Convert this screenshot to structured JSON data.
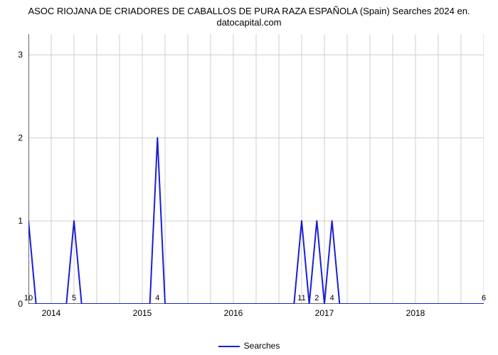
{
  "chart": {
    "type": "line",
    "title_line1": "ASOC RIOJANA DE CRIADORES DE CABALLOS DE PURA RAZA ESPAÑOLA (Spain) Searches 2024 en.",
    "title_line2": "datocapital.com",
    "title_fontsize": 13,
    "background_color": "#ffffff",
    "grid_color": "#cfcfcf",
    "axis_color": "#000000",
    "line_color": "#1a1fd6",
    "line_width": 2,
    "x_axis": {
      "min": 0,
      "max": 60,
      "ticks": [
        {
          "pos": 3,
          "label": "2014"
        },
        {
          "pos": 15,
          "label": "2015"
        },
        {
          "pos": 27,
          "label": "2016"
        },
        {
          "pos": 39,
          "label": "2017"
        },
        {
          "pos": 51,
          "label": "2018"
        }
      ],
      "minor_step": 3,
      "label_fontsize": 12
    },
    "y_axis": {
      "min": 0,
      "max": 3.25,
      "ticks": [
        0,
        1,
        2,
        3
      ],
      "label_fontsize": 12
    },
    "series": {
      "name": "Searches",
      "y_values": [
        1,
        0,
        0,
        0,
        0,
        0,
        1,
        0,
        0,
        0,
        0,
        0,
        0,
        0,
        0,
        0,
        0,
        2,
        0,
        0,
        0,
        0,
        0,
        0,
        0,
        0,
        0,
        0,
        0,
        0,
        0,
        0,
        0,
        0,
        0,
        0,
        1,
        0,
        1,
        0,
        1,
        0,
        0,
        0,
        0,
        0,
        0,
        0,
        0,
        0,
        0,
        0,
        0,
        0,
        0,
        0,
        0,
        0,
        0,
        0,
        0
      ],
      "point_labels": [
        {
          "x": 0,
          "text": "10"
        },
        {
          "x": 6,
          "text": "5"
        },
        {
          "x": 17,
          "text": "4"
        },
        {
          "x": 36,
          "text": "11"
        },
        {
          "x": 38,
          "text": "2"
        },
        {
          "x": 40,
          "text": "4"
        },
        {
          "x": 60,
          "text": "6"
        }
      ],
      "point_label_fontsize": 11
    },
    "legend": {
      "label": "Searches",
      "fontsize": 12
    }
  }
}
